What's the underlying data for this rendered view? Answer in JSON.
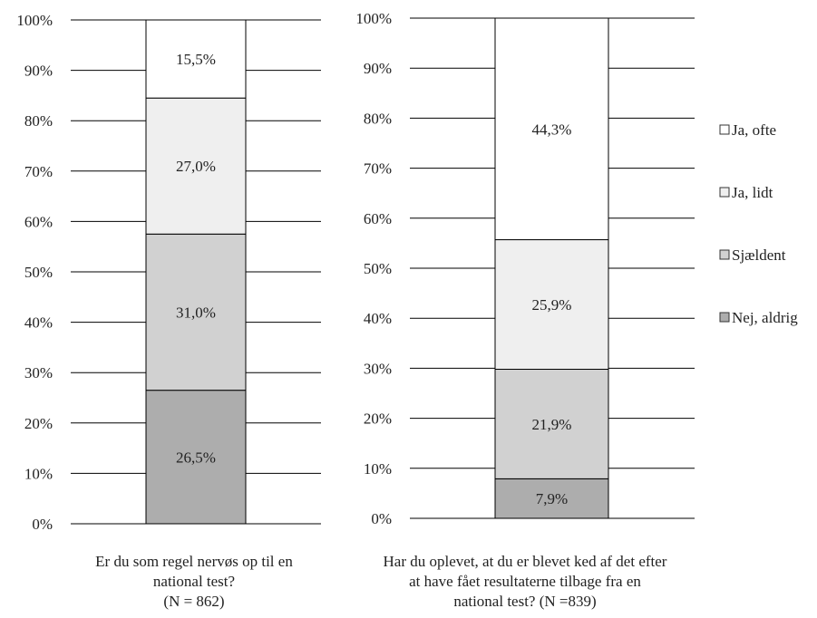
{
  "colors": {
    "Nej, aldrig": "#adadad",
    "Sjældent": "#d1d1d1",
    "Ja, lidt": "#efefef",
    "Ja, ofte": "#ffffff",
    "gridline": "#000000",
    "bar_outline": "#000000"
  },
  "legend": {
    "placement": "right",
    "entries": [
      "Ja, ofte",
      "Ja, lidt",
      "Sjældent",
      "Nej, aldrig"
    ]
  },
  "chart_data": [
    {
      "type": "bar",
      "stacked": true,
      "ylim": [
        0,
        100
      ],
      "y_ticks": [
        "0%",
        "10%",
        "20%",
        "30%",
        "40%",
        "50%",
        "60%",
        "70%",
        "80%",
        "90%",
        "100%"
      ],
      "grid": true,
      "title": "",
      "caption_lines": [
        "Er du som regel nervøs op til en",
        "national test?",
        "(N = 862)"
      ],
      "series": [
        {
          "name": "Nej, aldrig",
          "value": 26.5,
          "label": "26,5%"
        },
        {
          "name": "Sjældent",
          "value": 31.0,
          "label": "31,0%"
        },
        {
          "name": "Ja, lidt",
          "value": 27.0,
          "label": "27,0%"
        },
        {
          "name": "Ja, ofte",
          "value": 15.5,
          "label": "15,5%"
        }
      ]
    },
    {
      "type": "bar",
      "stacked": true,
      "ylim": [
        0,
        100
      ],
      "y_ticks": [
        "0%",
        "10%",
        "20%",
        "30%",
        "40%",
        "50%",
        "60%",
        "70%",
        "80%",
        "90%",
        "100%"
      ],
      "grid": true,
      "title": "",
      "caption_lines": [
        "Har du oplevet, at du er blevet ked af det efter",
        "at have fået resultaterne tilbage fra en",
        "national test? (N =839)"
      ],
      "series": [
        {
          "name": "Nej, aldrig",
          "value": 7.9,
          "label": "7,9%"
        },
        {
          "name": "Sjældent",
          "value": 21.9,
          "label": "21,9%"
        },
        {
          "name": "Ja, lidt",
          "value": 25.9,
          "label": "25,9%"
        },
        {
          "name": "Ja, ofte",
          "value": 44.3,
          "label": "44,3%"
        }
      ]
    }
  ]
}
